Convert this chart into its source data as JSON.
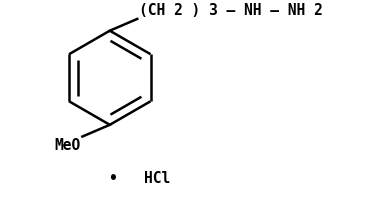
{
  "bg_color": "#ffffff",
  "line_color": "#000000",
  "line_width": 1.8,
  "font_size": 10.5,
  "chain_text": "(CH 2 ) 3 — NH — NH 2",
  "meo_text": "MeO",
  "hcl_text": "•   HCl",
  "fig_width": 3.73,
  "fig_height": 2.15,
  "dpi": 100
}
